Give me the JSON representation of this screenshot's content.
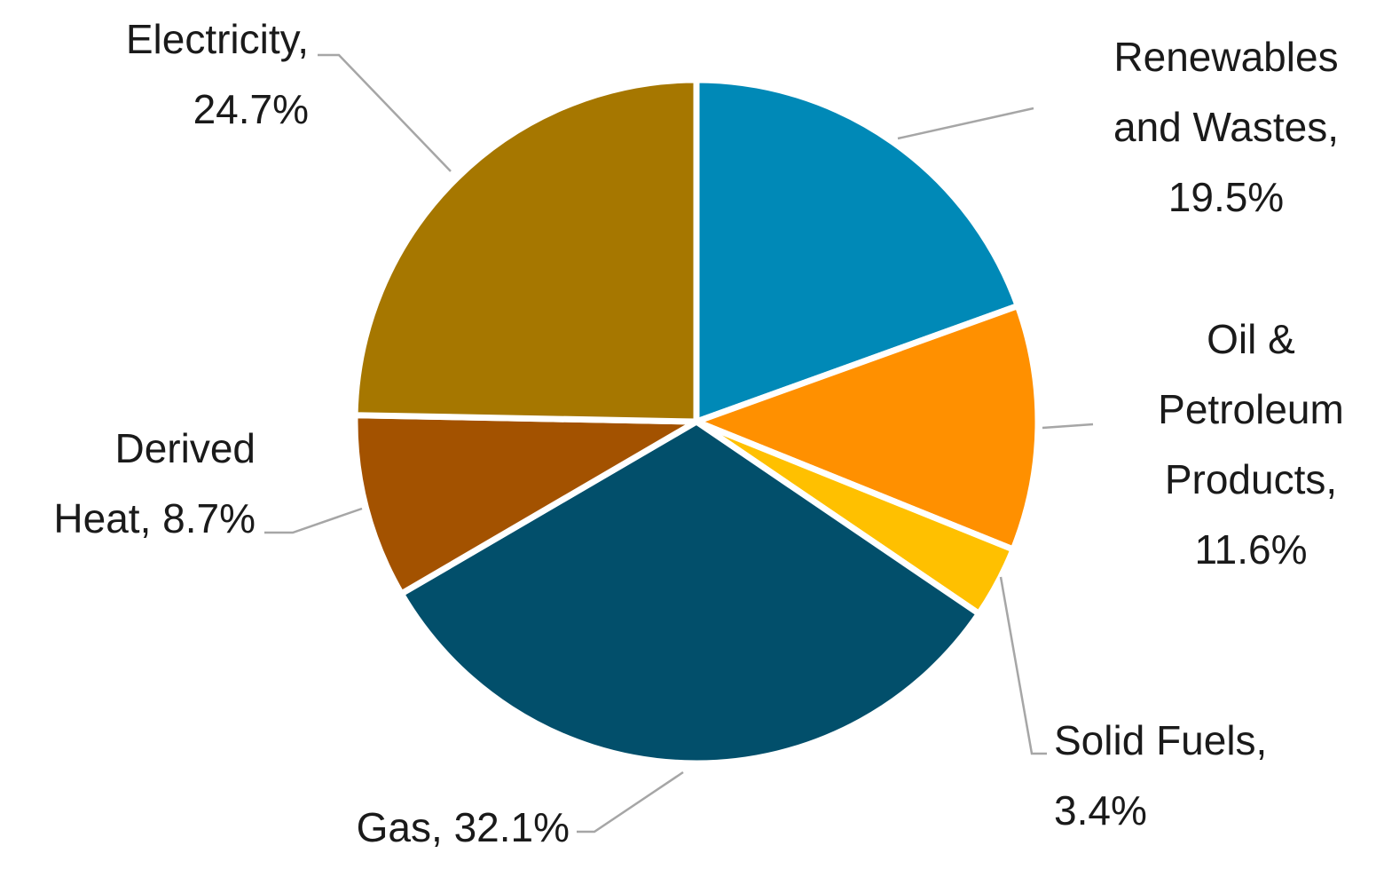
{
  "chart_data": {
    "type": "pie",
    "title": "",
    "start_angle_deg": 0,
    "direction": "clockwise",
    "slices": [
      {
        "name": "Renewables and Wastes",
        "value": 19.5,
        "label_lines": [
          "Renewables",
          "and Wastes,",
          "19.5%"
        ],
        "color": "#0089B7"
      },
      {
        "name": "Oil & Petroleum Products",
        "value": 11.6,
        "label_lines": [
          "Oil &",
          "Petroleum",
          "Products,",
          "11.6%"
        ],
        "color": "#FF9000"
      },
      {
        "name": "Solid Fuels",
        "value": 3.4,
        "label_lines": [
          "Solid Fuels,",
          "3.4%"
        ],
        "color": "#FFC000"
      },
      {
        "name": "Gas",
        "value": 32.1,
        "label_lines": [
          "Gas, 32.1%"
        ],
        "color": "#024F6B"
      },
      {
        "name": "Derived Heat",
        "value": 8.7,
        "label_lines": [
          "Derived",
          "Heat, 8.7%"
        ],
        "color": "#A35200"
      },
      {
        "name": "Electricity",
        "value": 24.7,
        "label_lines": [
          "Electricity,",
          "24.7%"
        ],
        "color": "#A67700"
      }
    ]
  }
}
